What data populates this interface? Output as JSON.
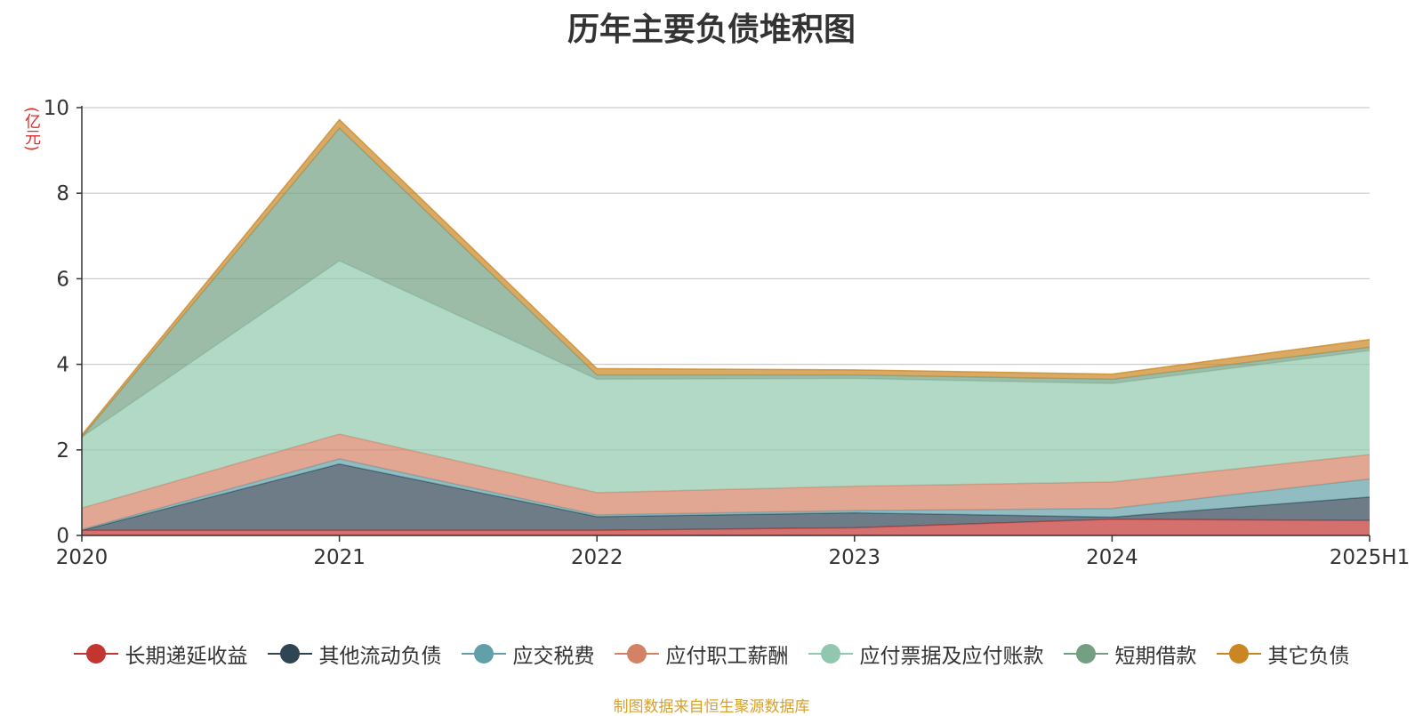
{
  "chart_data": {
    "type": "area",
    "stacked": true,
    "title": "历年主要负债堆积图",
    "ylabel": "(亿元)",
    "xlabel": "",
    "categories": [
      "2020",
      "2021",
      "2022",
      "2023",
      "2024",
      "2025H1"
    ],
    "ylim": [
      0,
      10
    ],
    "yticks": [
      0,
      2,
      4,
      6,
      8,
      10
    ],
    "grid": true,
    "legend_position": "bottom",
    "series": [
      {
        "name": "长期递延收益",
        "color": "#c23531",
        "values": [
          0.12,
          0.12,
          0.12,
          0.18,
          0.38,
          0.35
        ]
      },
      {
        "name": "其他流动负债",
        "color": "#2f4554",
        "values": [
          0.0,
          1.55,
          0.32,
          0.35,
          0.05,
          0.55
        ]
      },
      {
        "name": "应交税费",
        "color": "#61a0a8",
        "values": [
          0.02,
          0.12,
          0.04,
          0.05,
          0.2,
          0.42
        ]
      },
      {
        "name": "应付职工薪酬",
        "color": "#d48265",
        "values": [
          0.5,
          0.58,
          0.52,
          0.57,
          0.62,
          0.57
        ]
      },
      {
        "name": "应付票据及应付账款",
        "color": "#91c7ae",
        "values": [
          1.66,
          4.05,
          2.65,
          2.52,
          2.3,
          2.43
        ]
      },
      {
        "name": "短期借款",
        "color": "#749f83",
        "values": [
          0.0,
          3.1,
          0.1,
          0.08,
          0.1,
          0.08
        ]
      },
      {
        "name": "其它负债",
        "color": "#ca8622",
        "values": [
          0.05,
          0.2,
          0.15,
          0.12,
          0.12,
          0.18
        ]
      }
    ]
  },
  "footer": {
    "source": "制图数据来自恒生聚源数据库"
  }
}
